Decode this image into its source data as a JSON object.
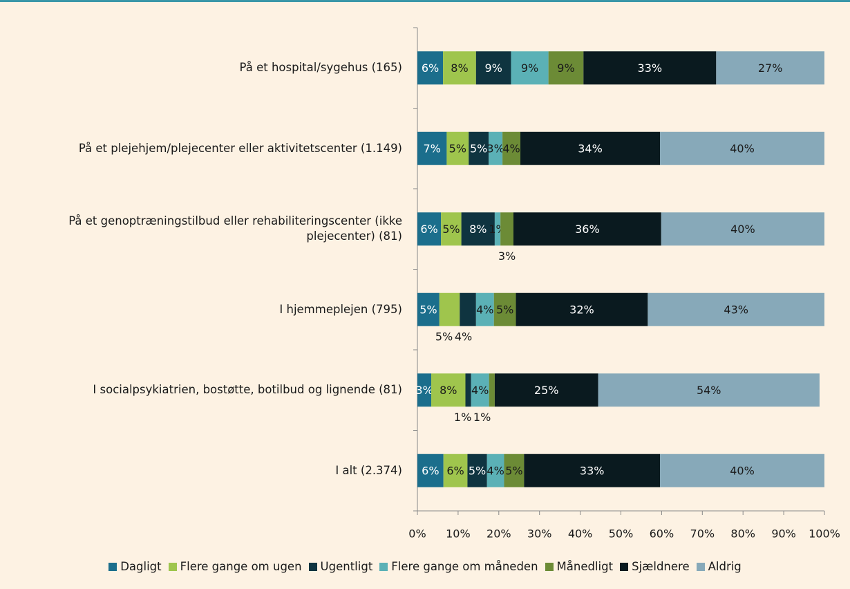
{
  "chart_data": {
    "type": "stacked_barh",
    "categories": [
      "På et hospital/sygehus (165)",
      "På et plejehjem/plejecenter eller aktivitetscenter (1.149)",
      "På et genoptræningstilbud eller rehabiliteringscenter (ikke plejecenter) (81)",
      "I hjemmeplejen (795)",
      "I socialpsykiatrien, bostøtte, botilbud og lignende (81)",
      "I alt (2.374)"
    ],
    "series": [
      {
        "name": "Dagligt",
        "color": "#1b6e8c",
        "values": [
          6.3,
          7.2,
          5.8,
          5.4,
          3.4,
          6.4
        ],
        "value_labels": [
          "6%",
          "7%",
          "6%",
          "5%",
          "3%",
          "6%"
        ]
      },
      {
        "name": "Flere gange om ugen",
        "color": "#9fc54d",
        "values": [
          8.1,
          5.4,
          5.0,
          5.0,
          8.4,
          5.9
        ],
        "value_labels": [
          "8%",
          "5%",
          "5%",
          "5%",
          "8%",
          "6%"
        ]
      },
      {
        "name": "Ugentligt",
        "color": "#0f3440",
        "values": [
          8.6,
          4.9,
          8.2,
          4.0,
          1.4,
          4.8
        ],
        "value_labels": [
          "9%",
          "5%",
          "8%",
          "4%",
          "1%",
          "5%"
        ]
      },
      {
        "name": "Flere gange om måneden",
        "color": "#5bb1b6",
        "values": [
          9.2,
          3.4,
          1.4,
          4.4,
          4.4,
          4.2
        ],
        "value_labels": [
          "9%",
          "3%",
          "1%",
          "4%",
          "4%",
          "4%"
        ]
      },
      {
        "name": "Månedligt",
        "color": "#6c8b36",
        "values": [
          8.6,
          4.4,
          3.2,
          5.4,
          1.4,
          4.9
        ],
        "value_labels": [
          "9%",
          "4%",
          "3%",
          "5%",
          "1%",
          "5%"
        ]
      },
      {
        "name": "Sjældnere",
        "color": "#0a1a1f",
        "values": [
          32.6,
          34.3,
          36.3,
          32.4,
          25.4,
          33.4
        ],
        "value_labels": [
          "33%",
          "34%",
          "36%",
          "32%",
          "25%",
          "33%"
        ]
      },
      {
        "name": "Aldrig",
        "color": "#87a9b9",
        "values": [
          26.6,
          40.4,
          40.1,
          43.4,
          54.4,
          40.4
        ],
        "value_labels": [
          "27%",
          "40%",
          "40%",
          "43%",
          "54%",
          "40%"
        ]
      }
    ],
    "xlim": [
      0,
      100
    ],
    "xticks": [
      {
        "value": 0,
        "label": "0%"
      },
      {
        "value": 10,
        "label": "10%"
      },
      {
        "value": 20,
        "label": "20%"
      },
      {
        "value": 30,
        "label": "30%"
      },
      {
        "value": 40,
        "label": "40%"
      },
      {
        "value": 50,
        "label": "50%"
      },
      {
        "value": 60,
        "label": "60%"
      },
      {
        "value": 70,
        "label": "70%"
      },
      {
        "value": 80,
        "label": "80%"
      },
      {
        "value": 90,
        "label": "90%"
      },
      {
        "value": 100,
        "label": "100%"
      }
    ],
    "legend": "bottom"
  }
}
